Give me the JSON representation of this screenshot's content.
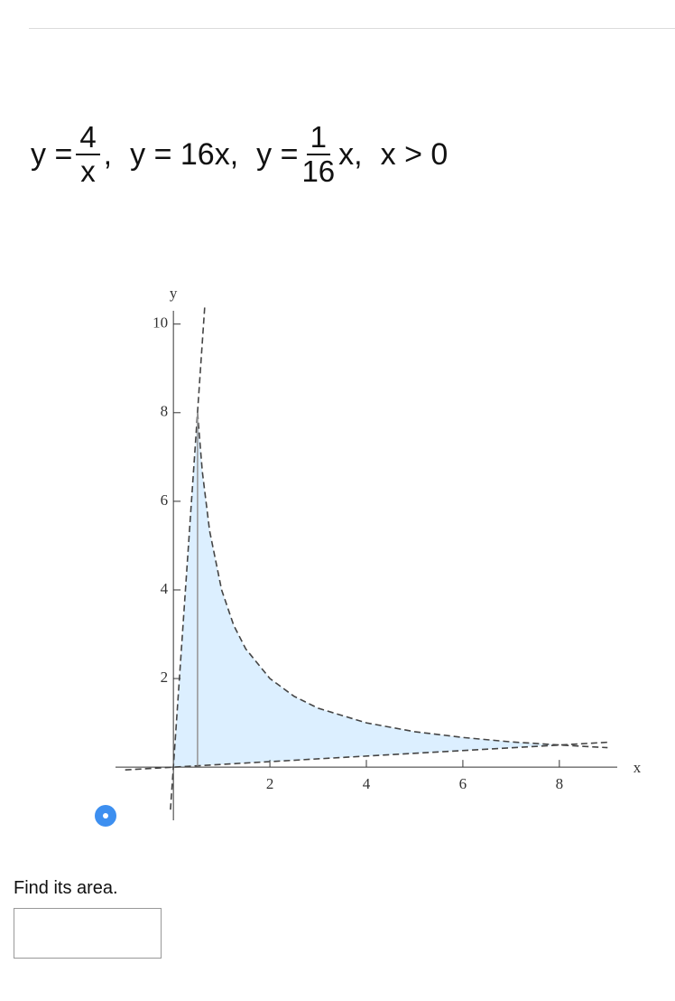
{
  "equation": [
    {
      "lhs": "y =",
      "num": "4",
      "den": "x",
      "tail": ","
    },
    {
      "text": "y = 16x,"
    },
    {
      "lhs": "y =",
      "num": "1",
      "den": "16",
      "tail": "x,"
    },
    {
      "text": "x > 0"
    }
  ],
  "chart_data": {
    "type": "line",
    "x_label": "x",
    "y_label": "y",
    "xlim": [
      -1.2,
      9.2
    ],
    "ylim": [
      -1.2,
      10.3
    ],
    "xticks": [
      2,
      4,
      6,
      8
    ],
    "yticks": [
      2,
      4,
      6,
      8,
      10
    ],
    "area": {
      "color": "#dcefff",
      "x": [
        0,
        0.5,
        0.6,
        0.75,
        1,
        1.25,
        1.5,
        2,
        2.5,
        3,
        4,
        5,
        6,
        7,
        8,
        0
      ],
      "values": [
        0,
        8,
        6.67,
        5.33,
        4,
        3.2,
        2.67,
        2,
        1.6,
        1.33,
        1,
        0.8,
        0.67,
        0.57,
        0.5,
        0
      ]
    },
    "series": [
      {
        "color": "#444444",
        "dashed": true,
        "x": [
          -0.06,
          0.65
        ],
        "values": [
          -0.96,
          10.4
        ]
      },
      {
        "color": "#444444",
        "dashed": true,
        "x": [
          -1,
          9
        ],
        "values": [
          -0.0625,
          0.5625
        ]
      },
      {
        "color": "#444444",
        "dashed": true,
        "x": [
          0.5,
          0.6,
          0.75,
          1,
          1.25,
          1.5,
          2,
          2.5,
          3,
          4,
          5,
          6,
          7,
          8,
          9
        ],
        "values": [
          8,
          6.67,
          5.33,
          4,
          3.2,
          2.67,
          2,
          1.6,
          1.33,
          1,
          0.8,
          0.67,
          0.57,
          0.5,
          0.44
        ]
      },
      {
        "color": "#999999",
        "dashed": false,
        "x": [
          0.5,
          0.5
        ],
        "values": [
          0.03125,
          8
        ]
      }
    ]
  },
  "prompt": "Find its area."
}
